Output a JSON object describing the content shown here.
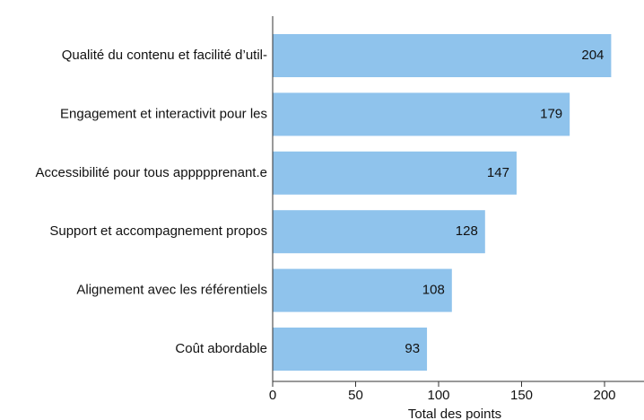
{
  "chart_data": {
    "type": "barh",
    "categories": [
      "Qualité du contenu et facilité d’util-",
      "Engagement et interactivit pour les",
      "Accessibilité pour tous appppprenant.e",
      "Support et accompagnement propos",
      "Alignement avec les référentiels",
      "Coût abordable"
    ],
    "values": [
      204,
      179,
      147,
      128,
      108,
      93
    ],
    "color": "#8fc3ec",
    "xlim": [
      0,
      220
    ],
    "xticks": [
      0,
      50,
      100,
      150,
      200
    ],
    "xlabel": "Total des points"
  }
}
